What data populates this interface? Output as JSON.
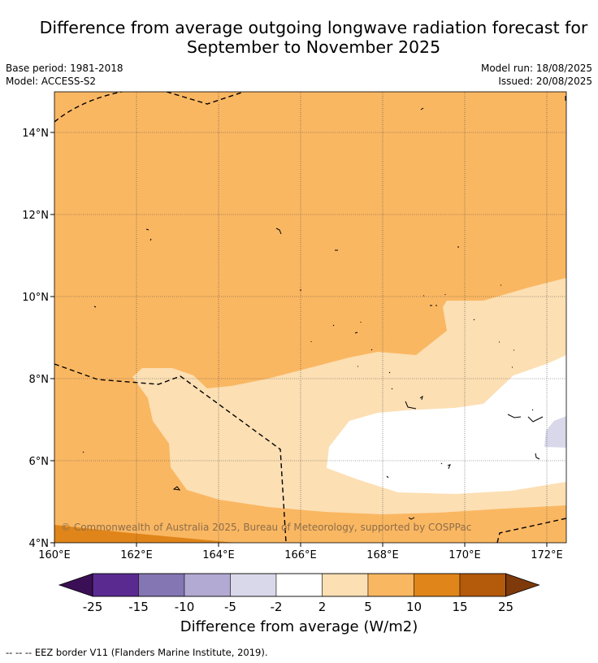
{
  "title_line1": "Difference from average outgoing longwave radiation forecast for",
  "title_line2": "September to November 2025",
  "meta": {
    "base_period": "Base period: 1981-2018",
    "model": "Model: ACCESS-S2",
    "model_run": "Model run: 18/08/2025",
    "issued": "Issued: 20/08/2025"
  },
  "map": {
    "lon_range": [
      160,
      172.5
    ],
    "lat_range": [
      4,
      15
    ],
    "lon_ticks": [
      "160°E",
      "162°E",
      "164°E",
      "166°E",
      "168°E",
      "170°E",
      "172°E"
    ],
    "lat_ticks": [
      "4°N",
      "6°N",
      "8°N",
      "10°N",
      "12°N",
      "14°N"
    ],
    "copyright": "© Commonwealth of Australia 2025, Bureau of Meteorology, supported by COSPPac",
    "gridlines": true
  },
  "colorbar": {
    "labels": [
      "-25",
      "-15",
      "-10",
      "-5",
      "-2",
      "2",
      "5",
      "10",
      "15",
      "25"
    ],
    "colors": [
      "#3b0f55",
      "#5b2a91",
      "#8475b3",
      "#b3aad3",
      "#d8d8ea",
      "#ffffff",
      "#fcdfb3",
      "#fab762",
      "#e08519",
      "#b45a0b",
      "#7e3a0a"
    ],
    "title": "Difference from average (W/m2)"
  },
  "legend_note": "--  --  -- EEZ border V11 (Flanders Marine Institute, 2019)."
}
